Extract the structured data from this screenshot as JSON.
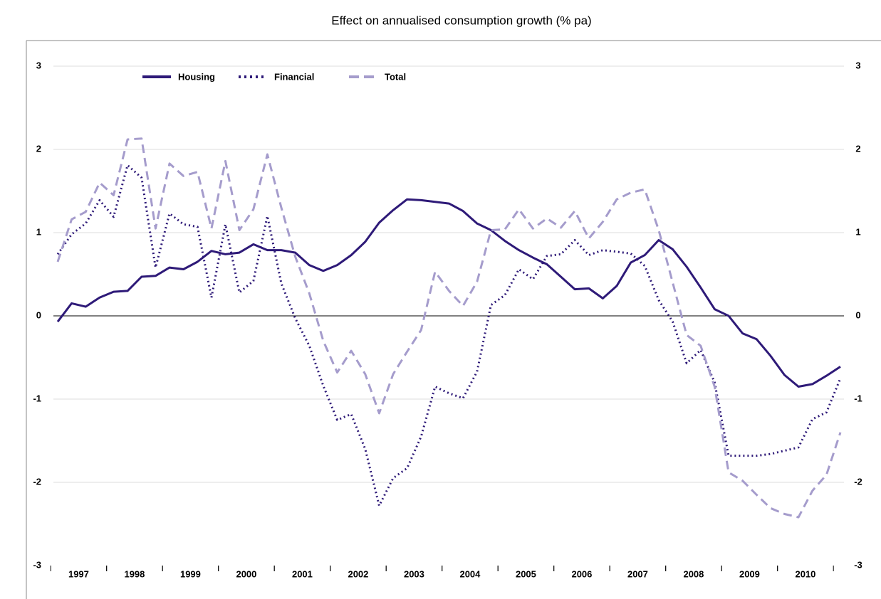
{
  "chart_data": {
    "type": "line",
    "title": "Effect on annualised consumption growth (% pa)",
    "categories": [
      null,
      "1997",
      null,
      null,
      null,
      "1998",
      null,
      null,
      null,
      "1999",
      null,
      null,
      null,
      "2000",
      null,
      null,
      null,
      "2001",
      null,
      null,
      null,
      "2002",
      null,
      null,
      null,
      "2003",
      null,
      null,
      null,
      "2004",
      null,
      null,
      null,
      "2005",
      null,
      null,
      null,
      "2006",
      null,
      null,
      null,
      "2007",
      null,
      null,
      null,
      "2008",
      null,
      null,
      null,
      "2009",
      null,
      null,
      null,
      "2010",
      null,
      null,
      null
    ],
    "series": [
      {
        "name": "Housing",
        "color": "#2e1a78",
        "style": "solid",
        "values": [
          -0.07,
          0.15,
          0.11,
          0.22,
          0.29,
          0.3,
          0.47,
          0.48,
          0.58,
          0.56,
          0.65,
          0.78,
          0.74,
          0.76,
          0.86,
          0.79,
          0.79,
          0.76,
          0.61,
          0.54,
          0.61,
          0.73,
          0.89,
          1.12,
          1.27,
          1.4,
          1.39,
          1.37,
          1.35,
          1.26,
          1.11,
          1.03,
          0.9,
          0.79,
          0.7,
          0.62,
          0.47,
          0.32,
          0.33,
          0.21,
          0.36,
          0.64,
          0.73,
          0.91,
          0.8,
          0.59,
          0.34,
          0.08,
          0.0,
          -0.21,
          -0.28,
          -0.48,
          -0.71,
          -0.85,
          -0.82,
          -0.72,
          -0.61
        ]
      },
      {
        "name": "Financial",
        "color": "#2e1a78",
        "style": "dotted",
        "values": [
          0.74,
          0.98,
          1.11,
          1.39,
          1.19,
          1.81,
          1.66,
          0.58,
          1.23,
          1.1,
          1.07,
          0.22,
          1.1,
          0.28,
          0.42,
          1.2,
          0.39,
          -0.03,
          -0.36,
          -0.84,
          -1.25,
          -1.18,
          -1.6,
          -2.28,
          -1.95,
          -1.83,
          -1.45,
          -0.85,
          -0.93,
          -0.99,
          -0.67,
          0.13,
          0.25,
          0.56,
          0.44,
          0.72,
          0.74,
          0.91,
          0.73,
          0.79,
          0.77,
          0.75,
          0.6,
          0.19,
          -0.07,
          -0.57,
          -0.41,
          -0.8,
          -1.68,
          -1.68,
          -1.68,
          -1.66,
          -1.62,
          -1.58,
          -1.24,
          -1.16,
          -0.75
        ]
      },
      {
        "name": "Total",
        "color": "#a59ccc",
        "style": "dashed",
        "values": [
          0.65,
          1.16,
          1.25,
          1.6,
          1.45,
          2.12,
          2.13,
          1.05,
          1.83,
          1.68,
          1.73,
          1.05,
          1.86,
          1.03,
          1.28,
          1.94,
          1.3,
          0.71,
          0.27,
          -0.3,
          -0.68,
          -0.42,
          -0.7,
          -1.17,
          -0.7,
          -0.43,
          -0.17,
          0.53,
          0.3,
          0.12,
          0.41,
          1.03,
          1.04,
          1.28,
          1.05,
          1.17,
          1.06,
          1.26,
          0.93,
          1.13,
          1.4,
          1.48,
          1.52,
          1.03,
          0.4,
          -0.23,
          -0.36,
          -0.85,
          -1.88,
          -1.98,
          -2.15,
          -2.31,
          -2.38,
          -2.42,
          -2.1,
          -1.91,
          -1.4
        ]
      }
    ],
    "ylim": [
      -3,
      3
    ],
    "yticks": [
      -3,
      -2,
      -1,
      0,
      1,
      2,
      3
    ],
    "y2lim": [
      -3,
      3
    ],
    "y2ticks": [
      -3,
      -2,
      -1,
      0,
      1,
      2,
      3
    ],
    "grid": true,
    "legend": "top-left"
  }
}
